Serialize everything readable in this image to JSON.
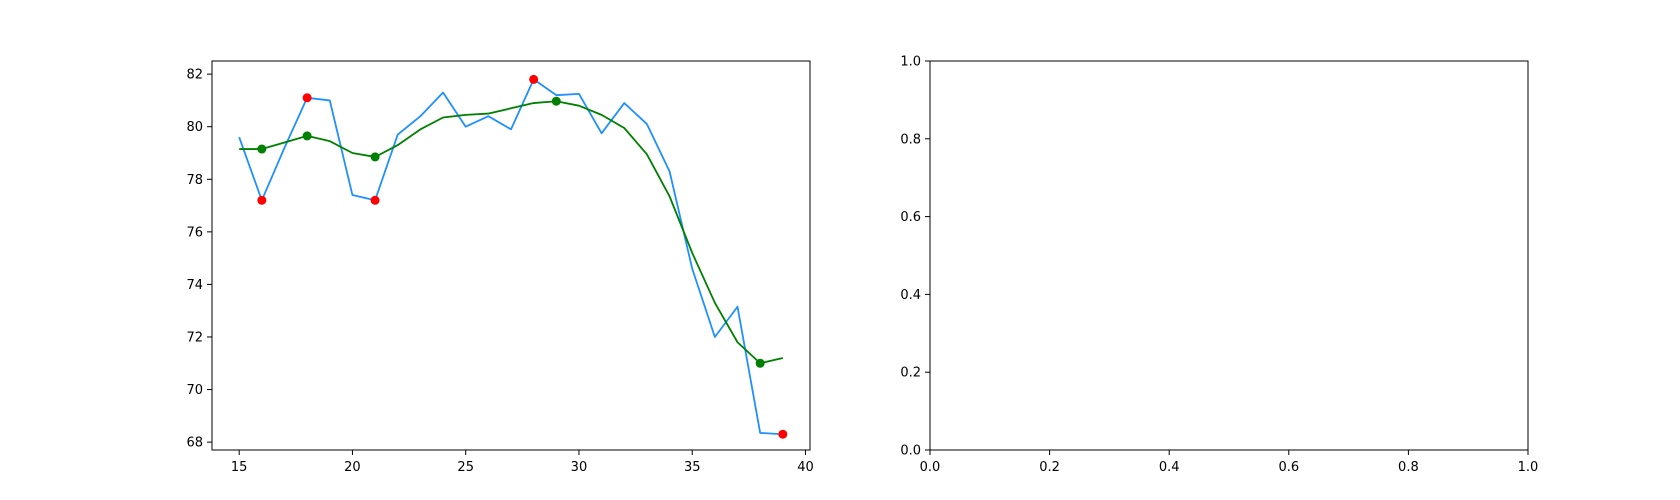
{
  "chart_data": [
    {
      "type": "line",
      "title": "",
      "xlabel": "",
      "ylabel": "",
      "xlim": [
        13.8,
        40.2
      ],
      "ylim": [
        67.7,
        82.5
      ],
      "xticks": [
        15,
        20,
        25,
        30,
        35,
        40
      ],
      "yticks": [
        68,
        70,
        72,
        74,
        76,
        78,
        80,
        82
      ],
      "grid": false,
      "legend": "none",
      "series": [
        {
          "color": "#1e90ff",
          "style": "line",
          "x": [
            15,
            16,
            17,
            18,
            19,
            20,
            21,
            22,
            23,
            24,
            25,
            26,
            27,
            28,
            29,
            30,
            31,
            32,
            33,
            34,
            35,
            36,
            37,
            38,
            39
          ],
          "y": [
            79.6,
            77.2,
            79.2,
            81.1,
            81.0,
            77.4,
            77.2,
            79.7,
            80.4,
            81.3,
            80.0,
            80.4,
            79.9,
            81.8,
            81.2,
            81.25,
            79.75,
            80.9,
            80.1,
            78.3,
            74.6,
            72.0,
            73.15,
            68.35,
            68.3
          ]
        },
        {
          "color": "#008000",
          "style": "line",
          "x": [
            15,
            16,
            17,
            18,
            19,
            20,
            21,
            22,
            23,
            24,
            25,
            26,
            27,
            28,
            29,
            30,
            31,
            32,
            33,
            34,
            35,
            36,
            37,
            38,
            39
          ],
          "y": [
            79.15,
            79.15,
            79.4,
            79.65,
            79.45,
            79.0,
            78.85,
            79.3,
            79.9,
            80.35,
            80.45,
            80.5,
            80.7,
            80.9,
            80.97,
            80.8,
            80.45,
            79.95,
            78.95,
            77.35,
            75.2,
            73.3,
            71.8,
            71.0,
            71.2
          ]
        },
        {
          "color": "#ff0000",
          "style": "scatter",
          "x": [
            16,
            18,
            21,
            28,
            39
          ],
          "y": [
            77.2,
            81.1,
            77.2,
            81.8,
            68.3
          ]
        },
        {
          "color": "#008000",
          "style": "scatter",
          "x": [
            16,
            18,
            21,
            29,
            38
          ],
          "y": [
            79.15,
            79.65,
            78.85,
            80.97,
            71.0
          ]
        }
      ]
    },
    {
      "type": "line",
      "title": "",
      "xlabel": "",
      "ylabel": "",
      "xlim": [
        0.0,
        1.0
      ],
      "ylim": [
        0.0,
        1.0
      ],
      "xticks": [
        0.0,
        0.2,
        0.4,
        0.6,
        0.8,
        1.0
      ],
      "yticks": [
        0.0,
        0.2,
        0.4,
        0.6,
        0.8,
        1.0
      ],
      "xtick_labels": [
        "0.0",
        "0.2",
        "0.4",
        "0.6",
        "0.8",
        "1.0"
      ],
      "ytick_labels": [
        "0.0",
        "0.2",
        "0.4",
        "0.6",
        "0.8",
        "1.0"
      ],
      "grid": false,
      "legend": "none",
      "series": []
    }
  ]
}
